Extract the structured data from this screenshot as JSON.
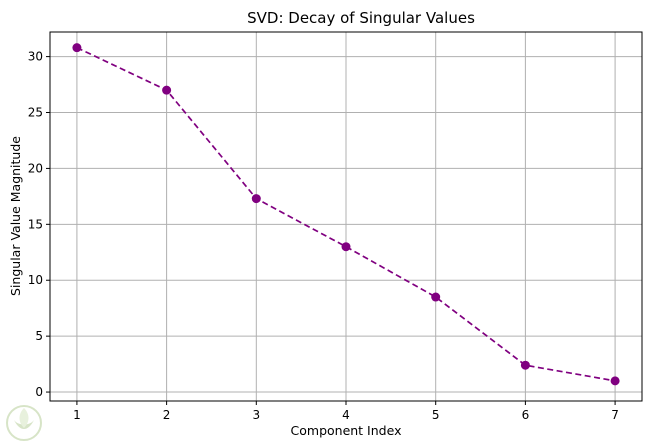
{
  "chart_data": {
    "type": "line",
    "title": "SVD: Decay of Singular Values",
    "xlabel": "Component Index",
    "ylabel": "Singular Value Magnitude",
    "x": [
      1,
      2,
      3,
      4,
      5,
      6,
      7
    ],
    "xticks": [
      "1",
      "2",
      "3",
      "4",
      "5",
      "6",
      "7"
    ],
    "yticks": [
      "0",
      "5",
      "10",
      "15",
      "20",
      "25",
      "30"
    ],
    "xlim": [
      0.7,
      7.3
    ],
    "ylim": [
      -0.8,
      32.2
    ],
    "grid": true,
    "series": [
      {
        "values": [
          30.8,
          27.0,
          17.3,
          13.0,
          8.5,
          2.4,
          1.0
        ],
        "color": "#800080",
        "line_style": "dashed",
        "marker": "circle"
      }
    ]
  }
}
